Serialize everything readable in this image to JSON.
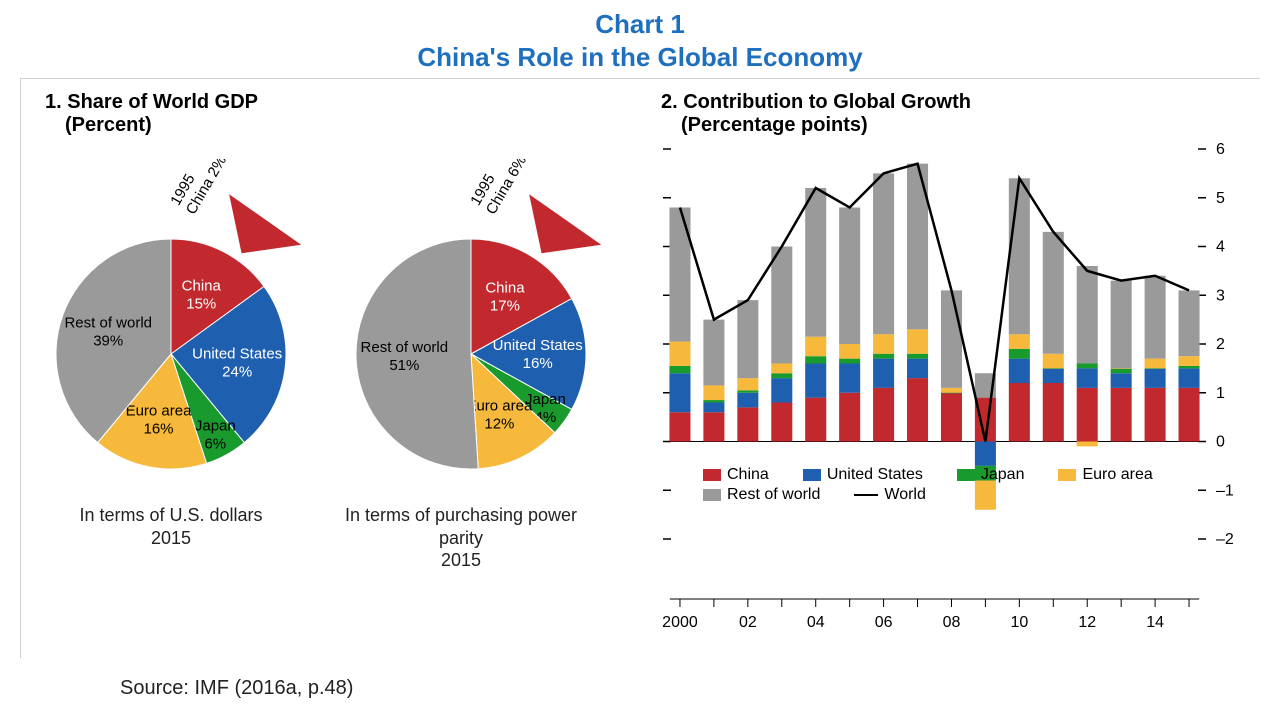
{
  "title_line1": "Chart 1",
  "title_line2": "China's Role in the Global Economy",
  "title_color": "#1f6fbf",
  "title_fontsize": 26,
  "colors": {
    "china": "#c1292e",
    "us": "#1f5fb0",
    "japan": "#189b2c",
    "euro": "#f6b93b",
    "rest": "#9a9a9a",
    "world_line": "#000000",
    "axis": "#000000",
    "background": "#ffffff"
  },
  "panel1": {
    "heading_line1": "1. Share of World GDP",
    "heading_line2": "(Percent)",
    "heading_fontsize": 20,
    "pies": [
      {
        "caption_line1": "In terms of U.S. dollars",
        "caption_line2": "2015",
        "callout": {
          "year": "1995",
          "label": "China 2%"
        },
        "slices": [
          {
            "name": "China",
            "value": 15,
            "label": "China",
            "pct": "15%",
            "color": "#c1292e"
          },
          {
            "name": "United States",
            "value": 24,
            "label": "United States",
            "pct": "24%",
            "color": "#1f5fb0"
          },
          {
            "name": "Japan",
            "value": 6,
            "label": "Japan",
            "pct": "6%",
            "color": "#189b2c"
          },
          {
            "name": "Euro area",
            "value": 16,
            "label": "Euro area",
            "pct": "16%",
            "color": "#f6b93b"
          },
          {
            "name": "Rest of world",
            "value": 39,
            "label": "Rest of world",
            "pct": "39%",
            "color": "#9a9a9a"
          }
        ]
      },
      {
        "caption_line1": "In terms of purchasing power parity",
        "caption_line2": "2015",
        "callout": {
          "year": "1995",
          "label": "China 6%"
        },
        "slices": [
          {
            "name": "China",
            "value": 17,
            "label": "China",
            "pct": "17%",
            "color": "#c1292e"
          },
          {
            "name": "United States",
            "value": 16,
            "label": "United States",
            "pct": "16%",
            "color": "#1f5fb0"
          },
          {
            "name": "Japan",
            "value": 4,
            "label": "Japan",
            "pct": "4%",
            "color": "#189b2c"
          },
          {
            "name": "Euro area",
            "value": 12,
            "label": "Euro area",
            "pct": "12%",
            "color": "#f6b93b"
          },
          {
            "name": "Rest of world",
            "value": 51,
            "label": "Rest of world",
            "pct": "51%",
            "color": "#9a9a9a"
          }
        ]
      }
    ]
  },
  "panel2": {
    "heading_line1": "2. Contribution to Global Growth",
    "heading_line2": "(Percentage points)",
    "type": "stacked-bar-with-line",
    "ylim": [
      -2,
      6
    ],
    "ytick_step": 1,
    "years": [
      2000,
      2001,
      2002,
      2003,
      2004,
      2005,
      2006,
      2007,
      2008,
      2009,
      2010,
      2011,
      2012,
      2013,
      2014,
      2015
    ],
    "x_tick_labels": [
      "2000",
      "",
      "02",
      "",
      "04",
      "",
      "06",
      "",
      "08",
      "",
      "10",
      "",
      "12",
      "",
      "14",
      ""
    ],
    "series_order": [
      "china",
      "us",
      "japan",
      "euro",
      "rest"
    ],
    "legend": [
      {
        "key": "china",
        "label": "China",
        "color": "#c1292e",
        "type": "box"
      },
      {
        "key": "us",
        "label": "United States",
        "color": "#1f5fb0",
        "type": "box"
      },
      {
        "key": "japan",
        "label": "Japan",
        "color": "#189b2c",
        "type": "box"
      },
      {
        "key": "euro",
        "label": "Euro area",
        "color": "#f6b93b",
        "type": "box"
      },
      {
        "key": "rest",
        "label": "Rest of world",
        "color": "#9a9a9a",
        "type": "box"
      },
      {
        "key": "world",
        "label": "World",
        "color": "#000000",
        "type": "line"
      }
    ],
    "bars": [
      {
        "year": 2000,
        "china": 0.6,
        "us": 0.8,
        "japan": 0.15,
        "euro": 0.5,
        "rest": 2.75
      },
      {
        "year": 2001,
        "china": 0.6,
        "us": 0.2,
        "japan": 0.05,
        "euro": 0.3,
        "rest": 1.35
      },
      {
        "year": 2002,
        "china": 0.7,
        "us": 0.3,
        "japan": 0.05,
        "euro": 0.25,
        "rest": 1.6
      },
      {
        "year": 2003,
        "china": 0.8,
        "us": 0.5,
        "japan": 0.1,
        "euro": 0.2,
        "rest": 2.4
      },
      {
        "year": 2004,
        "china": 0.9,
        "us": 0.7,
        "japan": 0.15,
        "euro": 0.4,
        "rest": 3.05
      },
      {
        "year": 2005,
        "china": 1.0,
        "us": 0.6,
        "japan": 0.1,
        "euro": 0.3,
        "rest": 2.8
      },
      {
        "year": 2006,
        "china": 1.1,
        "us": 0.6,
        "japan": 0.1,
        "euro": 0.4,
        "rest": 3.3
      },
      {
        "year": 2007,
        "china": 1.3,
        "us": 0.4,
        "japan": 0.1,
        "euro": 0.5,
        "rest": 3.4
      },
      {
        "year": 2008,
        "china": 1.0,
        "us": 0.0,
        "japan": 0.0,
        "euro": 0.1,
        "rest": 2.0
      },
      {
        "year": 2009,
        "china": 0.9,
        "us": -0.5,
        "japan": -0.3,
        "euro": -0.6,
        "rest": 0.5
      },
      {
        "year": 2010,
        "china": 1.2,
        "us": 0.5,
        "japan": 0.2,
        "euro": 0.3,
        "rest": 3.2
      },
      {
        "year": 2011,
        "china": 1.2,
        "us": 0.3,
        "japan": 0.0,
        "euro": 0.3,
        "rest": 2.5
      },
      {
        "year": 2012,
        "china": 1.1,
        "us": 0.4,
        "japan": 0.1,
        "euro": -0.1,
        "rest": 2.0
      },
      {
        "year": 2013,
        "china": 1.1,
        "us": 0.3,
        "japan": 0.1,
        "euro": 0.0,
        "rest": 1.8
      },
      {
        "year": 2014,
        "china": 1.1,
        "us": 0.4,
        "japan": 0.0,
        "euro": 0.2,
        "rest": 1.7
      },
      {
        "year": 2015,
        "china": 1.1,
        "us": 0.4,
        "japan": 0.05,
        "euro": 0.2,
        "rest": 1.35
      }
    ],
    "world_line": [
      4.8,
      2.5,
      2.9,
      4.0,
      5.2,
      4.8,
      5.5,
      5.7,
      3.1,
      0.0,
      5.4,
      4.3,
      3.5,
      3.3,
      3.4,
      3.1
    ],
    "bar_width_ratio": 0.62
  },
  "source": "Source: IMF (2016a, p.48)"
}
